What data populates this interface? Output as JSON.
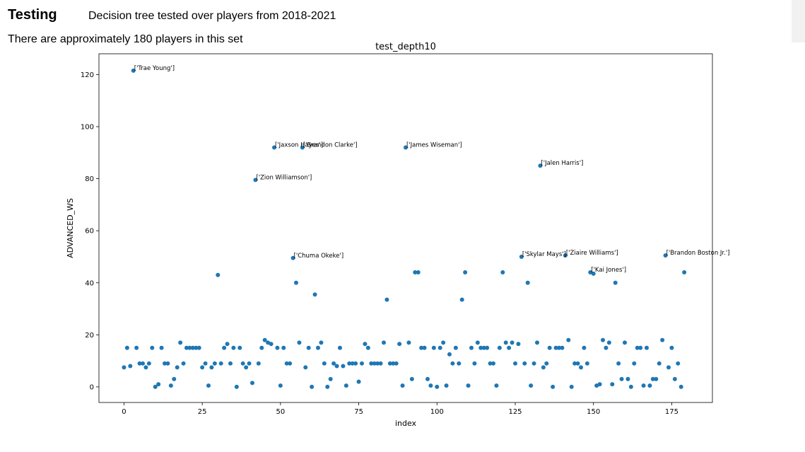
{
  "header": {
    "title": "Testing",
    "subtitle": "Decision tree tested over players from 2018-2021",
    "count_text": "There are approximately 180 players in this set"
  },
  "chart_data": {
    "type": "scatter",
    "title": "test_depth10",
    "xlabel": "index",
    "ylabel": "ADVANCED_WS",
    "xlim": [
      -8,
      188
    ],
    "ylim": [
      -6,
      128
    ],
    "xticks": [
      0,
      25,
      50,
      75,
      100,
      125,
      150,
      175
    ],
    "yticks": [
      0,
      20,
      40,
      60,
      80,
      100,
      120
    ],
    "grid": false,
    "color": "#1f77b4",
    "x": [
      0,
      1,
      2,
      3,
      4,
      5,
      6,
      7,
      8,
      9,
      10,
      11,
      12,
      13,
      14,
      15,
      16,
      17,
      18,
      19,
      20,
      21,
      22,
      23,
      24,
      25,
      26,
      27,
      28,
      29,
      30,
      31,
      32,
      33,
      34,
      35,
      36,
      37,
      38,
      39,
      40,
      41,
      42,
      43,
      44,
      45,
      46,
      47,
      48,
      49,
      50,
      51,
      52,
      53,
      54,
      55,
      56,
      57,
      58,
      59,
      60,
      61,
      62,
      63,
      64,
      65,
      66,
      67,
      68,
      69,
      70,
      71,
      72,
      73,
      74,
      75,
      76,
      77,
      78,
      79,
      80,
      81,
      82,
      83,
      84,
      85,
      86,
      87,
      88,
      89,
      90,
      91,
      92,
      93,
      94,
      95,
      96,
      97,
      98,
      99,
      100,
      101,
      102,
      103,
      104,
      105,
      106,
      107,
      108,
      109,
      110,
      111,
      112,
      113,
      114,
      115,
      116,
      117,
      118,
      119,
      120,
      121,
      122,
      123,
      124,
      125,
      126,
      127,
      128,
      129,
      130,
      131,
      132,
      133,
      134,
      135,
      136,
      137,
      138,
      139,
      140,
      141,
      142,
      143,
      144,
      145,
      146,
      147,
      148,
      149,
      150,
      151,
      152,
      153,
      154,
      155,
      156,
      157,
      158,
      159,
      160,
      161,
      162,
      163,
      164,
      165,
      166,
      167,
      168,
      169,
      170,
      171,
      172,
      173,
      174,
      175,
      176,
      177,
      178,
      179
    ],
    "y": [
      7.5,
      15,
      8,
      121.5,
      15,
      9,
      9,
      7.5,
      9,
      15,
      0,
      1,
      15,
      9,
      9,
      0.5,
      3,
      7.5,
      17,
      9,
      15,
      15,
      15,
      15,
      15,
      7.5,
      9,
      0.5,
      7.5,
      9,
      43,
      9,
      15,
      16.5,
      9,
      15,
      0,
      15,
      9,
      7.5,
      9,
      1.5,
      79.5,
      9,
      15,
      18,
      17,
      16.5,
      92,
      15,
      0.5,
      15,
      9,
      9,
      49.5,
      40,
      17,
      92,
      7.5,
      15,
      0,
      35.5,
      15,
      17,
      9,
      0,
      3,
      9,
      8,
      15,
      8,
      0.5,
      9,
      9,
      9,
      2,
      9,
      16.5,
      15,
      9,
      9,
      9,
      9,
      17,
      33.5,
      9,
      9,
      9,
      16.5,
      0.5,
      92,
      17,
      3,
      44,
      44,
      15,
      15,
      3,
      0.5,
      15,
      0,
      15,
      17,
      0.5,
      12.5,
      9,
      15,
      9,
      33.5,
      44,
      0.5,
      15,
      9,
      17,
      15,
      15,
      15,
      9,
      9,
      0.5,
      15,
      44,
      17,
      15,
      17,
      9,
      16.5,
      50,
      9,
      40,
      0.5,
      9,
      17,
      85,
      7.5,
      9,
      15,
      0,
      15,
      15,
      15,
      50.5,
      18,
      0,
      9,
      9,
      7.5,
      15,
      9,
      44,
      43.5,
      0.5,
      1,
      18,
      15,
      17,
      1,
      40,
      9,
      3,
      17,
      3,
      0,
      9,
      15,
      15,
      0.5,
      15,
      0.5,
      3,
      3,
      9,
      18,
      50.5,
      7.5,
      15,
      3,
      9,
      0,
      44
    ],
    "annotations": [
      {
        "x": 3,
        "y": 121.5,
        "label": "['Trae Young']"
      },
      {
        "x": 42,
        "y": 79.5,
        "label": "['Zion Williamson']"
      },
      {
        "x": 48,
        "y": 92,
        "label": "['Jaxson Hayes']"
      },
      {
        "x": 57,
        "y": 92,
        "label": "['Brandon Clarke']"
      },
      {
        "x": 90,
        "y": 92,
        "label": "['James Wiseman']"
      },
      {
        "x": 54,
        "y": 49.5,
        "label": "['Chuma Okeke']"
      },
      {
        "x": 133,
        "y": 85,
        "label": "['Jalen Harris']"
      },
      {
        "x": 127,
        "y": 50,
        "label": "['Skylar Mays']"
      },
      {
        "x": 141,
        "y": 50.5,
        "label": "['Ziaire Williams']"
      },
      {
        "x": 149,
        "y": 44,
        "label": "['Kai Jones']"
      },
      {
        "x": 173,
        "y": 50.5,
        "label": "['Brandon Boston Jr.']"
      }
    ]
  }
}
